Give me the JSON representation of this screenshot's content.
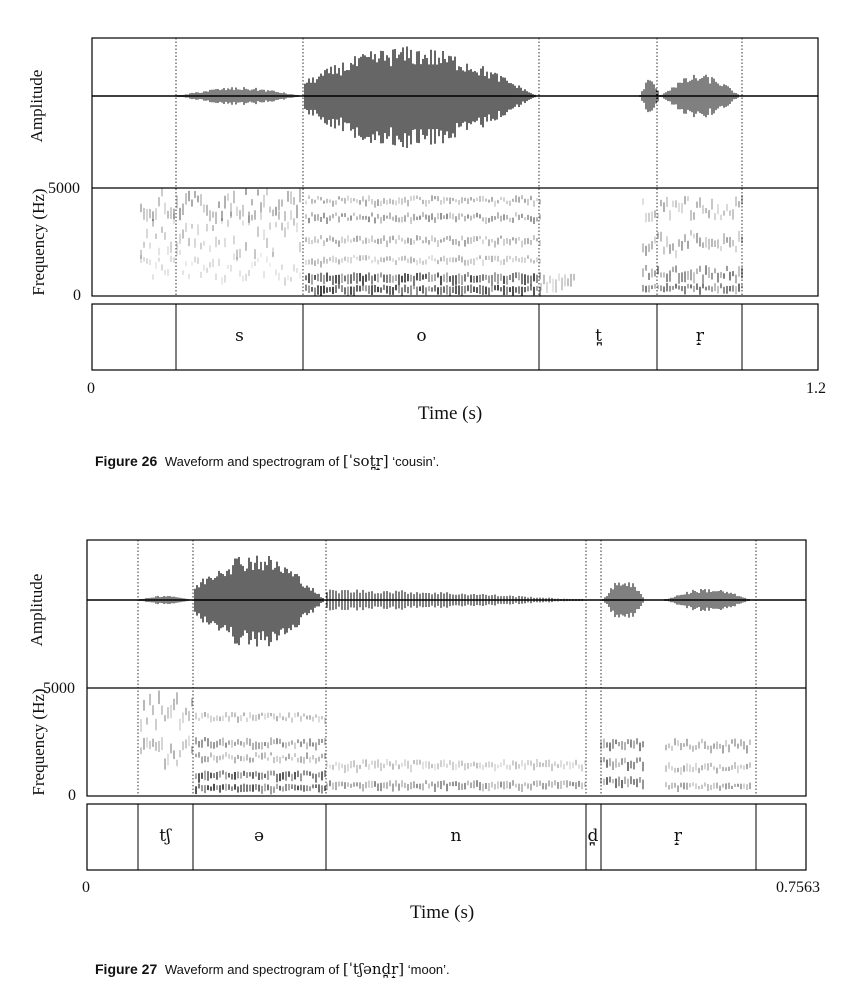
{
  "figures": [
    {
      "ylabel_amplitude": "Amplitude",
      "ylabel_frequency": "Frequency (Hz)",
      "freq_max_label": "5000",
      "freq_min_label": "0",
      "time_start_label": "0",
      "time_end_label": "1.2",
      "xlabel": "Time (s)",
      "caption_label": "Figure 26",
      "caption_text": "Waveform and spectrogram of",
      "caption_ipa": "[ˈsot̪r̝]",
      "caption_gloss": "‘cousin’.",
      "segments": [
        "s",
        "o",
        "t̪",
        "r̝"
      ]
    },
    {
      "ylabel_amplitude": "Amplitude",
      "ylabel_frequency": "Frequency (Hz)",
      "freq_max_label": "5000",
      "freq_min_label": "0",
      "time_start_label": "0",
      "time_end_label": "0.7563",
      "xlabel": "Time (s)",
      "caption_label": "Figure 27",
      "caption_text": "Waveform and spectrogram of",
      "caption_ipa": "[ˈtʃənd̪r̝]",
      "caption_gloss": "‘moon’.",
      "segments": [
        "tʃ",
        "ə",
        "n",
        "d̪",
        "r̝"
      ]
    }
  ]
}
